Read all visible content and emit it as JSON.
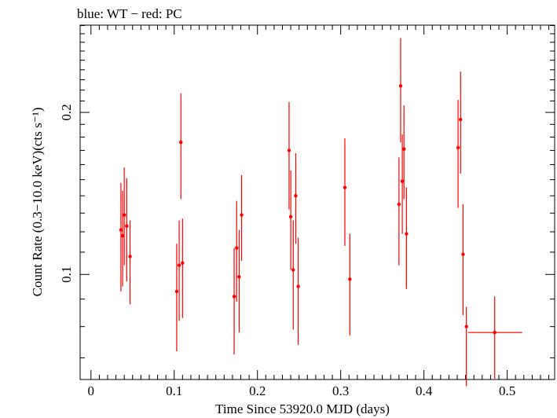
{
  "chart_data": {
    "type": "scatter",
    "title": "blue: WT − red: PC",
    "xlabel": "Time Since 53920.0 MJD (days)",
    "ylabel": "Count Rate (0.3−10.0 keV)(cts s⁻¹)",
    "x_ticks": [
      "0",
      "0.1",
      "0.2",
      "0.3",
      "0.4",
      "0.5"
    ],
    "y_ticks": [
      "0.1",
      "0.2"
    ],
    "y_scale": "log",
    "xlim": [
      -0.013,
      0.557
    ],
    "ylim": [
      0.0638,
      0.2905
    ],
    "color": "#ff0000",
    "series": [
      {
        "points": [
          {
            "x": 0.036,
            "y": 0.121,
            "ylo": 0.093,
            "yhi": 0.148
          },
          {
            "x": 0.038,
            "y": 0.118,
            "ylo": 0.095,
            "yhi": 0.143
          },
          {
            "x": 0.04,
            "y": 0.129,
            "ylo": 0.104,
            "yhi": 0.158
          },
          {
            "x": 0.043,
            "y": 0.123,
            "ylo": 0.097,
            "yhi": 0.151
          },
          {
            "x": 0.047,
            "y": 0.108,
            "ylo": 0.088,
            "yhi": 0.126
          },
          {
            "x": 0.103,
            "y": 0.093,
            "ylo": 0.072,
            "yhi": 0.114
          },
          {
            "x": 0.106,
            "y": 0.104,
            "ylo": 0.082,
            "yhi": 0.126
          },
          {
            "x": 0.108,
            "y": 0.176,
            "ylo": 0.138,
            "yhi": 0.217
          },
          {
            "x": 0.11,
            "y": 0.105,
            "ylo": 0.083,
            "yhi": 0.127
          },
          {
            "x": 0.172,
            "y": 0.091,
            "ylo": 0.071,
            "yhi": 0.112
          },
          {
            "x": 0.175,
            "y": 0.112,
            "ylo": 0.089,
            "yhi": 0.137
          },
          {
            "x": 0.178,
            "y": 0.099,
            "ylo": 0.078,
            "yhi": 0.121
          },
          {
            "x": 0.181,
            "y": 0.129,
            "ylo": 0.106,
            "yhi": 0.153
          },
          {
            "x": 0.238,
            "y": 0.17,
            "ylo": 0.132,
            "yhi": 0.209
          },
          {
            "x": 0.24,
            "y": 0.128,
            "ylo": 0.102,
            "yhi": 0.156
          },
          {
            "x": 0.243,
            "y": 0.102,
            "ylo": 0.079,
            "yhi": 0.126
          },
          {
            "x": 0.246,
            "y": 0.14,
            "ylo": 0.114,
            "yhi": 0.168
          },
          {
            "x": 0.249,
            "y": 0.095,
            "ylo": 0.074,
            "yhi": 0.117
          },
          {
            "x": 0.305,
            "y": 0.145,
            "ylo": 0.113,
            "yhi": 0.179
          },
          {
            "x": 0.311,
            "y": 0.098,
            "ylo": 0.077,
            "yhi": 0.119
          },
          {
            "x": 0.37,
            "y": 0.135,
            "ylo": 0.104,
            "yhi": 0.165
          },
          {
            "x": 0.372,
            "y": 0.224,
            "ylo": 0.176,
            "yhi": 0.275
          },
          {
            "x": 0.374,
            "y": 0.149,
            "ylo": 0.119,
            "yhi": 0.182
          },
          {
            "x": 0.376,
            "y": 0.171,
            "ylo": 0.138,
            "yhi": 0.206
          },
          {
            "x": 0.379,
            "y": 0.119,
            "ylo": 0.094,
            "yhi": 0.145
          },
          {
            "x": 0.441,
            "y": 0.172,
            "ylo": 0.133,
            "yhi": 0.211
          },
          {
            "x": 0.444,
            "y": 0.194,
            "ylo": 0.154,
            "yhi": 0.238
          },
          {
            "x": 0.447,
            "y": 0.109,
            "ylo": 0.084,
            "yhi": 0.135
          },
          {
            "x": 0.451,
            "y": 0.08,
            "ylo": 0.062,
            "yhi": 0.087
          },
          {
            "x": 0.485,
            "y": 0.078,
            "ylo": 0.064,
            "yhi": 0.091,
            "xlo": 0.453,
            "xhi": 0.518
          }
        ]
      }
    ]
  }
}
